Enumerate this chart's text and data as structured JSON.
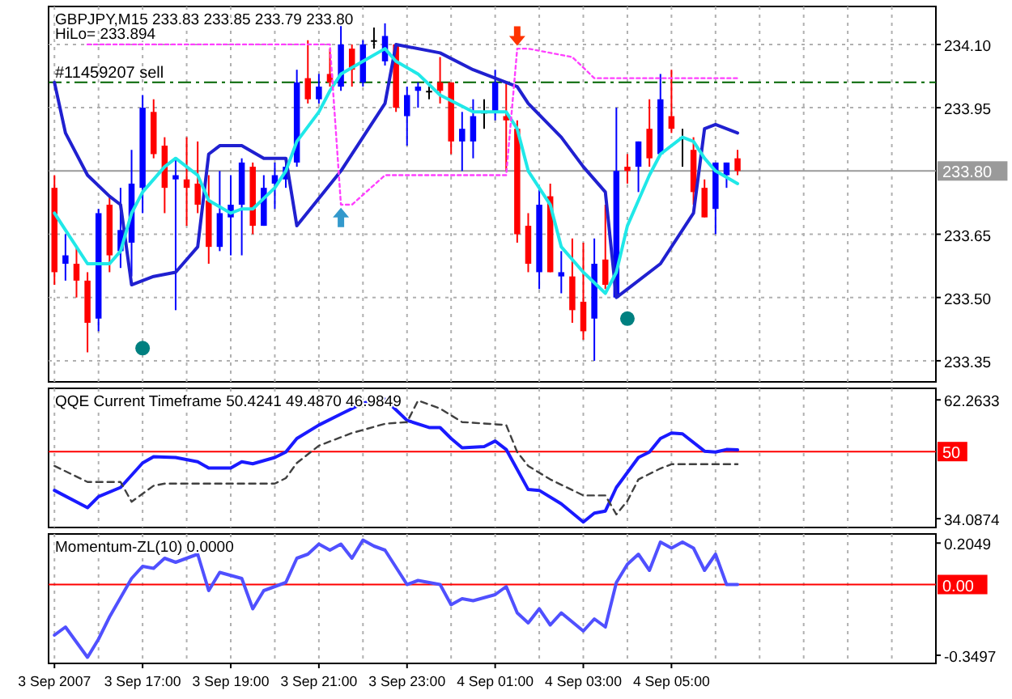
{
  "chart_data": [
    {
      "type": "candlestick",
      "title": "GBPJPY,M15  233.83 233.85 233.79 233.80",
      "subtitle": "HiLo= 233.894",
      "x": [
        "2007-09-03T15:00",
        "2007-09-03T15:15",
        "2007-09-03T15:30",
        "2007-09-03T15:45",
        "2007-09-03T16:00",
        "2007-09-03T16:15",
        "2007-09-03T16:30",
        "2007-09-03T16:45",
        "2007-09-03T17:00",
        "2007-09-03T17:15",
        "2007-09-03T17:30",
        "2007-09-03T17:45",
        "2007-09-03T18:00",
        "2007-09-03T18:15",
        "2007-09-03T18:30",
        "2007-09-03T18:45",
        "2007-09-03T19:00",
        "2007-09-03T19:15",
        "2007-09-03T19:30",
        "2007-09-03T19:45",
        "2007-09-03T20:00",
        "2007-09-03T20:15",
        "2007-09-03T20:30",
        "2007-09-03T20:45",
        "2007-09-03T21:00",
        "2007-09-03T21:15",
        "2007-09-03T21:30",
        "2007-09-03T21:45",
        "2007-09-03T22:00",
        "2007-09-03T22:15",
        "2007-09-03T22:30",
        "2007-09-03T22:45",
        "2007-09-03T23:00",
        "2007-09-03T23:15",
        "2007-09-03T23:30",
        "2007-09-03T23:45",
        "2007-09-04T00:00",
        "2007-09-04T00:15",
        "2007-09-04T00:30",
        "2007-09-04T00:45",
        "2007-09-04T01:00",
        "2007-09-04T01:15",
        "2007-09-04T01:30",
        "2007-09-04T01:45",
        "2007-09-04T02:00",
        "2007-09-04T02:15",
        "2007-09-04T02:30",
        "2007-09-04T02:45",
        "2007-09-04T03:00",
        "2007-09-04T03:15",
        "2007-09-04T03:30",
        "2007-09-04T03:45",
        "2007-09-04T04:00",
        "2007-09-04T04:15",
        "2007-09-04T04:30",
        "2007-09-04T04:45",
        "2007-09-04T05:00",
        "2007-09-04T05:15",
        "2007-09-04T05:30",
        "2007-09-04T05:45",
        "2007-09-04T06:00",
        "2007-09-04T06:15",
        "2007-09-04T06:30"
      ],
      "ohlc": [
        [
          233.76,
          233.79,
          233.53,
          233.56
        ],
        [
          233.58,
          233.65,
          233.54,
          233.6
        ],
        [
          233.58,
          233.62,
          233.5,
          233.54
        ],
        [
          233.54,
          233.56,
          233.37,
          233.44
        ],
        [
          233.45,
          233.71,
          233.42,
          233.7
        ],
        [
          233.72,
          233.74,
          233.56,
          233.6
        ],
        [
          233.61,
          233.76,
          233.57,
          233.66
        ],
        [
          233.63,
          233.85,
          233.55,
          233.77
        ],
        [
          233.76,
          233.98,
          233.7,
          233.95
        ],
        [
          233.94,
          233.97,
          233.83,
          233.84
        ],
        [
          233.86,
          233.88,
          233.7,
          233.76
        ],
        [
          233.78,
          233.83,
          233.47,
          233.79
        ],
        [
          233.78,
          233.88,
          233.67,
          233.76
        ],
        [
          233.77,
          233.87,
          233.7,
          233.72
        ],
        [
          233.73,
          233.79,
          233.58,
          233.62
        ],
        [
          233.62,
          233.8,
          233.61,
          233.7
        ],
        [
          233.69,
          233.79,
          233.6,
          233.72
        ],
        [
          233.72,
          233.83,
          233.6,
          233.82
        ],
        [
          233.81,
          233.82,
          233.65,
          233.67
        ],
        [
          233.67,
          233.79,
          233.67,
          233.76
        ],
        [
          233.77,
          233.82,
          233.71,
          233.79
        ],
        [
          233.78,
          233.83,
          233.76,
          233.81
        ],
        [
          233.82,
          234.04,
          233.81,
          234.01
        ],
        [
          234.02,
          234.11,
          233.96,
          233.97
        ],
        [
          233.97,
          234.03,
          233.96,
          234.0
        ],
        [
          234.03,
          234.09,
          234.0,
          234.01
        ],
        [
          234.0,
          234.15,
          233.99,
          234.1
        ],
        [
          234.09,
          234.1,
          234.0,
          234.04
        ],
        [
          234.01,
          234.11,
          234.0,
          234.1
        ],
        [
          234.11,
          234.14,
          234.09,
          234.11
        ],
        [
          234.06,
          234.15,
          234.05,
          234.12
        ],
        [
          234.1,
          234.1,
          233.94,
          233.95
        ],
        [
          233.93,
          234.0,
          233.86,
          233.98
        ],
        [
          233.99,
          234.01,
          233.95,
          234.0
        ],
        [
          233.99,
          234.0,
          233.97,
          233.99
        ],
        [
          234.01,
          234.07,
          233.96,
          233.99
        ],
        [
          234.01,
          234.01,
          233.84,
          233.87
        ],
        [
          233.87,
          233.94,
          233.8,
          233.9
        ],
        [
          233.87,
          233.97,
          233.83,
          233.93
        ],
        [
          233.94,
          233.97,
          233.9,
          233.94
        ],
        [
          233.94,
          234.04,
          233.92,
          234.01
        ],
        [
          233.93,
          234.01,
          233.8,
          233.92
        ],
        [
          233.9,
          233.92,
          233.63,
          233.65
        ],
        [
          233.67,
          233.7,
          233.56,
          233.58
        ],
        [
          233.56,
          233.76,
          233.52,
          233.72
        ],
        [
          233.74,
          233.77,
          233.56,
          233.56
        ],
        [
          233.55,
          233.61,
          233.51,
          233.56
        ],
        [
          233.55,
          233.64,
          233.44,
          233.47
        ],
        [
          233.49,
          233.63,
          233.4,
          233.42
        ],
        [
          233.45,
          233.64,
          233.35,
          233.58
        ],
        [
          233.59,
          233.72,
          233.52,
          233.53
        ],
        [
          233.5,
          233.95,
          233.5,
          233.8
        ],
        [
          233.81,
          233.84,
          233.77,
          233.8
        ],
        [
          233.81,
          233.87,
          233.75,
          233.87
        ],
        [
          233.9,
          233.97,
          233.81,
          233.83
        ],
        [
          233.84,
          234.03,
          233.84,
          233.97
        ],
        [
          233.93,
          234.04,
          233.89,
          233.9
        ],
        [
          233.88,
          233.9,
          233.81,
          233.88
        ],
        [
          233.85,
          233.88,
          233.72,
          233.75
        ],
        [
          233.76,
          233.78,
          233.69,
          233.69
        ],
        [
          233.71,
          233.82,
          233.65,
          233.82
        ],
        [
          233.79,
          233.82,
          233.76,
          233.82
        ],
        [
          233.83,
          233.85,
          233.79,
          233.8
        ]
      ],
      "colors": [
        "#ff0000",
        "#0000ff",
        "#ff0000",
        "#ff0000",
        "#0000ff",
        "#ff0000",
        "#0000ff",
        "#0000ff",
        "#0000ff",
        "#ff0000",
        "#ff0000",
        "#0000ff",
        "#ff0000",
        "#ff0000",
        "#ff0000",
        "#0000ff",
        "#0000ff",
        "#0000ff",
        "#ff0000",
        "#0000ff",
        "#0000ff",
        "#0000ff",
        "#0000ff",
        "#ff0000",
        "#0000ff",
        "#ff0000",
        "#0000ff",
        "#ff0000",
        "#0000ff",
        "#000000",
        "#0000ff",
        "#ff0000",
        "#0000ff",
        "#0000ff",
        "#000000",
        "#ff0000",
        "#ff0000",
        "#0000ff",
        "#0000ff",
        "#000000",
        "#0000ff",
        "#ff0000",
        "#ff0000",
        "#ff0000",
        "#0000ff",
        "#ff0000",
        "#0000ff",
        "#ff0000",
        "#ff0000",
        "#0000ff",
        "#ff0000",
        "#0000ff",
        "#ff0000",
        "#0000ff",
        "#ff0000",
        "#0000ff",
        "#ff0000",
        "#000000",
        "#ff0000",
        "#ff0000",
        "#0000ff",
        "#0000ff",
        "#ff0000"
      ],
      "series": [
        {
          "type": "line",
          "color": "#2020d0",
          "x": [
            "2007-09-03T15:00",
            "2007-09-03T15:15",
            "2007-09-03T15:45",
            "2007-09-03T16:15",
            "2007-09-03T16:30",
            "2007-09-03T16:45",
            "2007-09-03T17:15",
            "2007-09-03T17:45",
            "2007-09-03T18:15",
            "2007-09-03T18:30",
            "2007-09-03T18:45",
            "2007-09-03T19:15",
            "2007-09-03T19:45",
            "2007-09-03T20:15",
            "2007-09-03T20:30",
            "2007-09-03T21:30",
            "2007-09-03T22:30",
            "2007-09-03T22:45",
            "2007-09-03T23:45",
            "2007-09-04T00:30",
            "2007-09-04T01:30",
            "2007-09-04T01:45",
            "2007-09-04T02:30",
            "2007-09-04T03:00",
            "2007-09-04T03:30",
            "2007-09-04T03:45",
            "2007-09-04T04:00",
            "2007-09-04T04:45",
            "2007-09-04T05:30",
            "2007-09-04T05:45",
            "2007-09-04T06:00",
            "2007-09-04T06:30"
          ],
          "values": [
            234.01,
            233.89,
            233.79,
            233.74,
            233.72,
            233.53,
            233.55,
            233.56,
            233.62,
            233.84,
            233.86,
            233.86,
            233.83,
            233.83,
            233.67,
            233.8,
            233.96,
            234.1,
            234.08,
            234.04,
            234.0,
            233.96,
            233.88,
            233.81,
            233.75,
            233.5,
            233.52,
            233.58,
            233.7,
            233.9,
            233.91,
            233.89
          ]
        },
        {
          "type": "line",
          "color": "#20e8e8",
          "x": [
            "2007-09-03T15:00",
            "2007-09-03T15:15",
            "2007-09-03T15:45",
            "2007-09-03T16:15",
            "2007-09-03T16:30",
            "2007-09-03T16:45",
            "2007-09-03T17:00",
            "2007-09-03T17:30",
            "2007-09-03T17:45",
            "2007-09-03T18:15",
            "2007-09-03T18:30",
            "2007-09-03T19:00",
            "2007-09-03T19:15",
            "2007-09-03T19:30",
            "2007-09-03T20:00",
            "2007-09-03T20:15",
            "2007-09-03T20:30",
            "2007-09-03T21:00",
            "2007-09-03T21:15",
            "2007-09-03T21:30",
            "2007-09-03T22:00",
            "2007-09-03T22:30",
            "2007-09-03T22:45",
            "2007-09-03T23:15",
            "2007-09-03T23:45",
            "2007-09-04T00:30",
            "2007-09-04T01:00",
            "2007-09-04T01:15",
            "2007-09-04T01:30",
            "2007-09-04T01:45",
            "2007-09-04T02:15",
            "2007-09-04T02:30",
            "2007-09-04T03:00",
            "2007-09-04T03:30",
            "2007-09-04T03:45",
            "2007-09-04T04:00",
            "2007-09-04T04:30",
            "2007-09-04T04:45",
            "2007-09-04T05:15",
            "2007-09-04T05:30",
            "2007-09-04T05:45",
            "2007-09-04T06:00",
            "2007-09-04T06:30"
          ],
          "values": [
            233.7,
            233.66,
            233.58,
            233.58,
            233.61,
            233.7,
            233.75,
            233.81,
            233.83,
            233.79,
            233.73,
            233.7,
            233.71,
            233.71,
            233.76,
            233.8,
            233.87,
            233.94,
            233.99,
            234.03,
            234.06,
            234.09,
            234.06,
            234.03,
            233.98,
            233.94,
            233.94,
            233.94,
            233.9,
            233.8,
            233.72,
            233.62,
            233.56,
            233.51,
            233.56,
            233.67,
            233.79,
            233.84,
            233.88,
            233.87,
            233.83,
            233.8,
            233.77
          ]
        },
        {
          "type": "line",
          "color": "#ff40ff",
          "line_style": "dotted",
          "x": [
            "2007-09-03T15:45",
            "2007-09-03T21:15",
            "2007-09-03T21:30",
            "2007-09-03T21:45",
            "2007-09-03T22:30",
            "2007-09-04T01:15",
            "2007-09-04T01:30",
            "2007-09-04T01:45",
            "2007-09-04T02:45",
            "2007-09-04T03:15",
            "2007-09-04T06:30"
          ],
          "values": [
            234.1,
            234.1,
            233.72,
            233.72,
            233.79,
            233.79,
            234.09,
            234.09,
            234.07,
            234.02,
            234.02
          ]
        },
        {
          "type": "scatter",
          "color": "#008080",
          "marker": "circle",
          "x": [
            "2007-09-03T17:00",
            "2007-09-04T04:00"
          ],
          "values": [
            233.38,
            233.45
          ]
        },
        {
          "type": "scatter",
          "color": "#3399cc",
          "marker": "triangle",
          "x": [
            "2007-09-03T21:30"
          ],
          "values": [
            233.69
          ]
        },
        {
          "type": "scatter",
          "color": "#ff3300",
          "marker": "triangle",
          "x": [
            "2007-09-04T01:30"
          ],
          "values": [
            234.12
          ]
        }
      ],
      "ref_lines": [
        {
          "axis": "y",
          "value": 234.01,
          "label": "#11459207 sell",
          "color": "#006400",
          "line_style": "dashed"
        },
        {
          "axis": "y",
          "value": 233.8,
          "label": "233.80",
          "color": "#9a9a9a"
        }
      ],
      "xlim": [
        "2007-09-03T14:52",
        "2007-09-04T11:00"
      ],
      "xticks": [
        "2007-09-03T15:00",
        "2007-09-03T16:00",
        "2007-09-03T17:00",
        "2007-09-03T18:00",
        "2007-09-03T19:00",
        "2007-09-03T20:00",
        "2007-09-03T21:00",
        "2007-09-03T22:00",
        "2007-09-03T23:00",
        "2007-09-04T00:00",
        "2007-09-04T01:00",
        "2007-09-04T02:00",
        "2007-09-04T03:00",
        "2007-09-04T04:00",
        "2007-09-04T05:00",
        "2007-09-04T06:00",
        "2007-09-04T07:00",
        "2007-09-04T08:00",
        "2007-09-04T09:00",
        "2007-09-04T10:00"
      ],
      "ylim": [
        233.3,
        234.19
      ],
      "yticks": [
        {
          "value": 234.1,
          "label": "234.10"
        },
        233.95,
        233.65,
        {
          "value": 233.5,
          "label": "233.50"
        },
        233.35
      ],
      "grid": true,
      "tick_labels": "y"
    },
    {
      "type": "line",
      "title": "QQE Current Timeframe 50.4241 49.4870 46.9849",
      "series": [
        {
          "color": "#1a1aff",
          "x": [
            "2007-09-03T15:00",
            "2007-09-03T15:45",
            "2007-09-03T16:00",
            "2007-09-03T16:30",
            "2007-09-03T17:00",
            "2007-09-03T17:15",
            "2007-09-03T17:45",
            "2007-09-03T18:15",
            "2007-09-03T18:30",
            "2007-09-03T19:00",
            "2007-09-03T19:15",
            "2007-09-03T19:30",
            "2007-09-03T20:00",
            "2007-09-03T20:15",
            "2007-09-03T20:30",
            "2007-09-03T21:00",
            "2007-09-03T21:30",
            "2007-09-03T22:00",
            "2007-09-03T22:30",
            "2007-09-03T23:00",
            "2007-09-03T23:30",
            "2007-09-03T23:45",
            "2007-09-04T00:00",
            "2007-09-04T00:15",
            "2007-09-04T00:45",
            "2007-09-04T01:00",
            "2007-09-04T01:15",
            "2007-09-04T01:45",
            "2007-09-04T02:00",
            "2007-09-04T02:30",
            "2007-09-04T03:00",
            "2007-09-04T03:15",
            "2007-09-04T03:30",
            "2007-09-04T03:45",
            "2007-09-04T04:15",
            "2007-09-04T04:30",
            "2007-09-04T04:45",
            "2007-09-04T05:00",
            "2007-09-04T05:15",
            "2007-09-04T05:45",
            "2007-09-04T06:00",
            "2007-09-04T06:15",
            "2007-09-04T06:30"
          ],
          "values": [
            40.8,
            36.7,
            39.3,
            41.5,
            47.3,
            48.8,
            48.6,
            47.6,
            46.1,
            46.1,
            47.6,
            47.1,
            48.6,
            49.9,
            53.1,
            56.3,
            58.9,
            61.5,
            62.4,
            57.4,
            55.7,
            55.7,
            53.1,
            50.9,
            51.2,
            52.5,
            50.5,
            41.0,
            40.8,
            37.6,
            33.3,
            35.4,
            35.9,
            41.5,
            48.6,
            49.9,
            53.1,
            54.4,
            54.2,
            50.1,
            49.9,
            50.5,
            50.4
          ]
        },
        {
          "color": "#404040",
          "line_style": "dashed",
          "x": [
            "2007-09-03T15:00",
            "2007-09-03T15:45",
            "2007-09-03T16:30",
            "2007-09-03T16:45",
            "2007-09-03T17:15",
            "2007-09-03T17:30",
            "2007-09-03T20:00",
            "2007-09-03T20:15",
            "2007-09-03T20:30",
            "2007-09-03T21:00",
            "2007-09-03T21:45",
            "2007-09-03T22:30",
            "2007-09-03T23:00",
            "2007-09-03T23:15",
            "2007-09-03T23:45",
            "2007-09-04T00:15",
            "2007-09-04T01:15",
            "2007-09-04T01:30",
            "2007-09-04T01:45",
            "2007-09-04T02:15",
            "2007-09-04T03:00",
            "2007-09-04T03:30",
            "2007-09-04T03:45",
            "2007-09-04T04:00",
            "2007-09-04T04:15",
            "2007-09-04T04:45",
            "2007-09-04T05:00",
            "2007-09-04T06:30"
          ],
          "values": [
            46.6,
            42.8,
            42.8,
            38.1,
            41.9,
            42.4,
            42.4,
            43.7,
            47.3,
            51.4,
            54.4,
            56.6,
            57.0,
            62.1,
            60.2,
            57.0,
            56.3,
            49.9,
            46.6,
            43.4,
            39.6,
            39.6,
            35.1,
            38.3,
            43.4,
            46.0,
            47.0,
            47.0
          ]
        }
      ],
      "ref_lines": [
        {
          "axis": "y",
          "value": 50,
          "label": "50",
          "color": "#ff0000"
        }
      ],
      "xlim": [
        "2007-09-03T14:52",
        "2007-09-04T11:00"
      ],
      "xticks": [
        "2007-09-03T15:00",
        "2007-09-03T16:00",
        "2007-09-03T17:00",
        "2007-09-03T18:00",
        "2007-09-03T19:00",
        "2007-09-03T20:00",
        "2007-09-03T21:00",
        "2007-09-03T22:00",
        "2007-09-03T23:00",
        "2007-09-04T00:00",
        "2007-09-04T01:00",
        "2007-09-04T02:00",
        "2007-09-04T03:00",
        "2007-09-04T04:00",
        "2007-09-04T05:00",
        "2007-09-04T06:00",
        "2007-09-04T07:00",
        "2007-09-04T08:00",
        "2007-09-04T09:00",
        "2007-09-04T10:00"
      ],
      "ylim": [
        32,
        65
      ],
      "yticks": [
        34.0874,
        62.2633
      ],
      "grid": "x",
      "tick_labels": "y"
    },
    {
      "type": "line",
      "title": "Momentum-ZL(10) 0.0000",
      "series": [
        {
          "color": "#5050ff",
          "x": [
            "2007-09-03T15:00",
            "2007-09-03T15:15",
            "2007-09-03T15:45",
            "2007-09-03T16:00",
            "2007-09-03T16:15",
            "2007-09-03T16:45",
            "2007-09-03T17:00",
            "2007-09-03T17:15",
            "2007-09-03T17:30",
            "2007-09-03T17:45",
            "2007-09-03T18:00",
            "2007-09-03T18:15",
            "2007-09-03T18:30",
            "2007-09-03T18:45",
            "2007-09-03T19:15",
            "2007-09-03T19:30",
            "2007-09-03T19:45",
            "2007-09-03T20:15",
            "2007-09-03T20:30",
            "2007-09-03T20:45",
            "2007-09-03T21:00",
            "2007-09-03T21:15",
            "2007-09-03T21:30",
            "2007-09-03T21:45",
            "2007-09-03T22:00",
            "2007-09-03T22:15",
            "2007-09-03T22:30",
            "2007-09-03T23:00",
            "2007-09-03T23:15",
            "2007-09-03T23:45",
            "2007-09-04T00:00",
            "2007-09-04T00:15",
            "2007-09-04T00:30",
            "2007-09-04T01:00",
            "2007-09-04T01:15",
            "2007-09-04T01:30",
            "2007-09-04T01:45",
            "2007-09-04T02:00",
            "2007-09-04T02:15",
            "2007-09-04T02:30",
            "2007-09-04T03:00",
            "2007-09-04T03:15",
            "2007-09-04T03:30",
            "2007-09-04T03:45",
            "2007-09-04T04:00",
            "2007-09-04T04:15",
            "2007-09-04T04:30",
            "2007-09-04T04:45",
            "2007-09-04T05:00",
            "2007-09-04T05:15",
            "2007-09-04T05:30",
            "2007-09-04T05:45",
            "2007-09-04T06:00",
            "2007-09-04T06:15",
            "2007-09-04T06:30"
          ],
          "values": [
            -0.25,
            -0.21,
            -0.36,
            -0.27,
            -0.16,
            0.03,
            0.09,
            0.08,
            0.13,
            0.11,
            0.13,
            0.15,
            -0.03,
            0.06,
            0.03,
            -0.12,
            -0.03,
            0.01,
            0.13,
            0.15,
            0.2,
            0.17,
            0.2,
            0.13,
            0.22,
            0.19,
            0.17,
            0.0,
            0.02,
            0.0,
            -0.1,
            -0.07,
            -0.08,
            -0.05,
            -0.01,
            -0.14,
            -0.19,
            -0.12,
            -0.2,
            -0.14,
            -0.23,
            -0.17,
            -0.21,
            0.01,
            0.1,
            0.15,
            0.07,
            0.21,
            0.18,
            0.21,
            0.18,
            0.07,
            0.15,
            0.0,
            0.0
          ]
        }
      ],
      "ref_lines": [
        {
          "axis": "y",
          "value": 0,
          "label": "0.00",
          "color": "#ff0000"
        }
      ],
      "xlim": [
        "2007-09-03T14:52",
        "2007-09-04T11:00"
      ],
      "xticks": [
        {
          "value": "2007-09-03T15:00",
          "label": "3 Sep 2007"
        },
        {
          "value": "2007-09-03T16:00",
          "label": null
        },
        {
          "value": "2007-09-03T17:00",
          "label": "3 Sep 17:00"
        },
        {
          "value": "2007-09-03T18:00",
          "label": null
        },
        {
          "value": "2007-09-03T19:00",
          "label": "3 Sep 19:00"
        },
        {
          "value": "2007-09-03T20:00",
          "label": null
        },
        {
          "value": "2007-09-03T21:00",
          "label": "3 Sep 21:00"
        },
        {
          "value": "2007-09-03T22:00",
          "label": null
        },
        {
          "value": "2007-09-03T23:00",
          "label": "3 Sep 23:00"
        },
        {
          "value": "2007-09-04T00:00",
          "label": null
        },
        {
          "value": "2007-09-04T01:00",
          "label": "4 Sep 01:00"
        },
        {
          "value": "2007-09-04T02:00",
          "label": null
        },
        {
          "value": "2007-09-04T03:00",
          "label": "4 Sep 03:00"
        },
        {
          "value": "2007-09-04T04:00",
          "label": null
        },
        {
          "value": "2007-09-04T05:00",
          "label": "4 Sep 05:00"
        },
        {
          "value": "2007-09-04T06:00",
          "label": null
        },
        {
          "value": "2007-09-04T07:00",
          "label": null
        },
        {
          "value": "2007-09-04T08:00",
          "label": null
        },
        {
          "value": "2007-09-04T09:00",
          "label": null
        },
        {
          "value": "2007-09-04T10:00",
          "label": null
        }
      ],
      "ylim": [
        -0.39,
        0.25
      ],
      "yticks": [
        -0.3497,
        0.2049
      ],
      "grid": "x"
    }
  ]
}
